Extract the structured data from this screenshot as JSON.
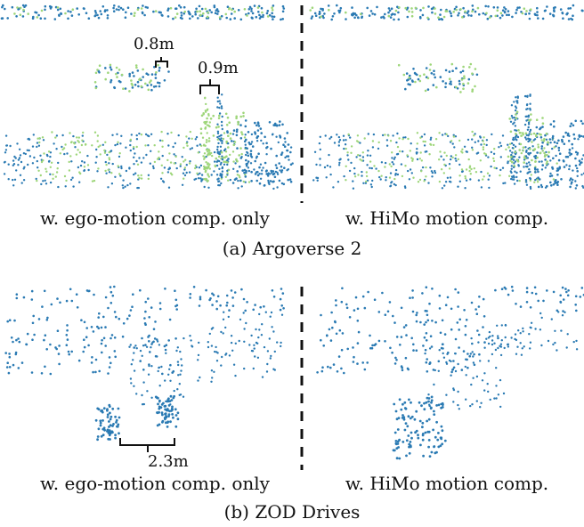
{
  "figure": {
    "argoverse": {
      "left_caption": "w. ego-motion comp. only",
      "right_caption": "w. HiMo motion comp.",
      "subcaption": "(a) Argoverse 2",
      "annotation_small": "0.8m",
      "annotation_large": "0.9m"
    },
    "zod": {
      "left_caption": "w. ego-motion comp. only",
      "right_caption": "w. HiMo motion comp.",
      "subcaption": "(b) ZOD Drives",
      "annotation": "2.3m"
    }
  },
  "colors": {
    "blue_points": "#2a7ab3",
    "green_points": "#9ed67a",
    "divider": "#111111"
  }
}
